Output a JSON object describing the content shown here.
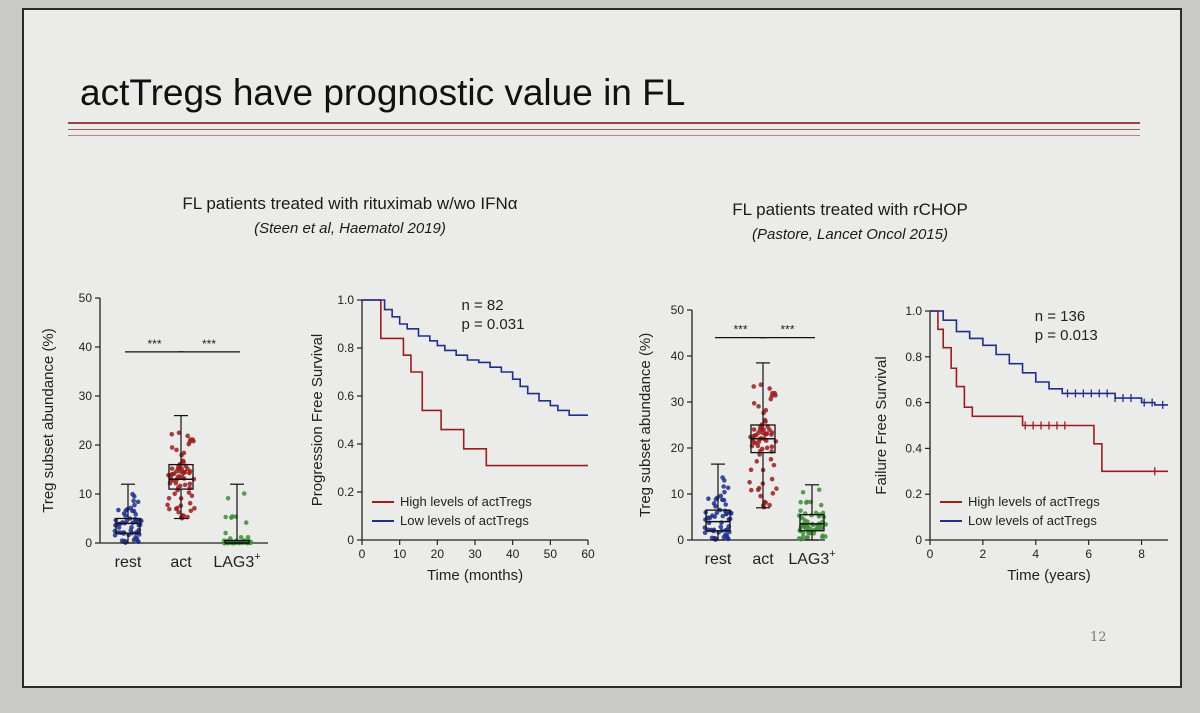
{
  "slide": {
    "title": "actTregs have prognostic value in FL",
    "page_number": "12",
    "left_header": {
      "line": "FL patients treated with rituximab  w/wo IFNα",
      "ref": "(Steen et al, Haematol 2019)"
    },
    "right_header": {
      "line": "FL patients treated with rCHOP",
      "ref": "(Pastore, Lancet Oncol 2015)"
    }
  },
  "colors": {
    "blue": "#1f2f8c",
    "red": "#9a1e1e",
    "green": "#3f8f3a",
    "axis": "#222222"
  },
  "chart_data": [
    {
      "type": "box",
      "id": "box1",
      "ylabel": "Treg subset abundance (%)",
      "ylim": [
        0,
        50
      ],
      "yticks": [
        "0",
        "10",
        "20",
        "30",
        "40",
        "50"
      ],
      "categories": [
        "rest",
        "act",
        "LAG3"
      ],
      "category_sup": {
        "LAG3": "+"
      },
      "groups": [
        {
          "name": "rest",
          "color": "blue",
          "min": 0,
          "q1": 2,
          "median": 4,
          "q3": 5,
          "max": 12
        },
        {
          "name": "act",
          "color": "red",
          "min": 5,
          "q1": 11,
          "median": 13,
          "q3": 16,
          "max": 26
        },
        {
          "name": "LAG3+",
          "color": "green",
          "min": 0,
          "q1": 0,
          "median": 0,
          "q3": 0.5,
          "max": 12
        }
      ],
      "significance": [
        {
          "from": "rest",
          "to": "act",
          "label": "***",
          "y": 39
        },
        {
          "from": "act",
          "to": "LAG3",
          "label": "***",
          "y": 39
        }
      ]
    },
    {
      "type": "line",
      "id": "km1",
      "ylabel": "Progression Free Survival",
      "xlabel": "Time (months)",
      "xlim": [
        0,
        60
      ],
      "ylim": [
        0,
        1
      ],
      "xticks": [
        "0",
        "10",
        "20",
        "30",
        "40",
        "50",
        "60"
      ],
      "yticks": [
        "0",
        "0.2",
        "0.4",
        "0.6",
        "0.8",
        "1.0"
      ],
      "annotations": [
        "n = 82",
        "p = 0.031"
      ],
      "series": [
        {
          "name": "High levels of actTregs",
          "color": "red",
          "x": [
            0,
            4,
            5,
            7,
            11,
            13,
            16,
            18,
            21,
            24,
            27,
            33,
            60
          ],
          "y": [
            1.0,
            1.0,
            0.84,
            0.84,
            0.77,
            0.7,
            0.54,
            0.54,
            0.46,
            0.46,
            0.38,
            0.31,
            0.31
          ]
        },
        {
          "name": "Low levels of actTregs",
          "color": "blue",
          "x": [
            0,
            5,
            6,
            8,
            10,
            12,
            15,
            18,
            20,
            22,
            25,
            28,
            31,
            34,
            37,
            40,
            42,
            44,
            47,
            50,
            52,
            55,
            60
          ],
          "y": [
            1.0,
            1.0,
            0.96,
            0.93,
            0.9,
            0.88,
            0.85,
            0.83,
            0.81,
            0.79,
            0.77,
            0.75,
            0.74,
            0.72,
            0.7,
            0.67,
            0.64,
            0.61,
            0.58,
            0.56,
            0.54,
            0.52,
            0.52
          ]
        }
      ]
    },
    {
      "type": "box",
      "id": "box2",
      "ylabel": "Treg subset abundance (%)",
      "ylim": [
        0,
        50
      ],
      "yticks": [
        "0",
        "10",
        "20",
        "30",
        "40",
        "50"
      ],
      "categories": [
        "rest",
        "act",
        "LAG3"
      ],
      "category_sup": {
        "LAG3": "+"
      },
      "groups": [
        {
          "name": "rest",
          "color": "blue",
          "min": 0,
          "q1": 2,
          "median": 4,
          "q3": 6.5,
          "max": 16.5
        },
        {
          "name": "act",
          "color": "red",
          "min": 7,
          "q1": 19,
          "median": 22,
          "q3": 25,
          "max": 38.5
        },
        {
          "name": "LAG3+",
          "color": "green",
          "min": 0,
          "q1": 2,
          "median": 3.5,
          "q3": 5.5,
          "max": 12
        }
      ],
      "significance": [
        {
          "from": "rest",
          "to": "act",
          "label": "***",
          "y": 44
        },
        {
          "from": "act",
          "to": "LAG3",
          "label": "***",
          "y": 44
        }
      ]
    },
    {
      "type": "line",
      "id": "km2",
      "ylabel": "Failure Free Survival",
      "xlabel": "Time (years)",
      "xlim": [
        0,
        9
      ],
      "ylim": [
        0,
        1
      ],
      "xticks": [
        "0",
        "2",
        "4",
        "6",
        "8"
      ],
      "yticks": [
        "0",
        "0.2",
        "0.4",
        "0.6",
        "0.8",
        "1.0"
      ],
      "annotations": [
        "n = 136",
        "p = 0.013"
      ],
      "series": [
        {
          "name": "High levels of actTregs",
          "color": "red",
          "x": [
            0,
            0.3,
            0.5,
            0.8,
            1.0,
            1.3,
            1.6,
            2.0,
            3.5,
            5.5,
            6.2,
            6.5,
            9.0
          ],
          "y": [
            1.0,
            0.92,
            0.84,
            0.75,
            0.67,
            0.58,
            0.54,
            0.54,
            0.5,
            0.5,
            0.42,
            0.3,
            0.3
          ]
        },
        {
          "name": "Low levels of actTregs",
          "color": "blue",
          "x": [
            0,
            0.5,
            1.0,
            1.5,
            2.0,
            2.5,
            3.0,
            3.5,
            4.0,
            4.5,
            5.0,
            6.0,
            7.0,
            8.0,
            8.5,
            9.0
          ],
          "y": [
            1.0,
            0.96,
            0.91,
            0.88,
            0.85,
            0.81,
            0.77,
            0.73,
            0.69,
            0.66,
            0.64,
            0.64,
            0.62,
            0.6,
            0.59,
            0.59
          ]
        }
      ]
    }
  ]
}
